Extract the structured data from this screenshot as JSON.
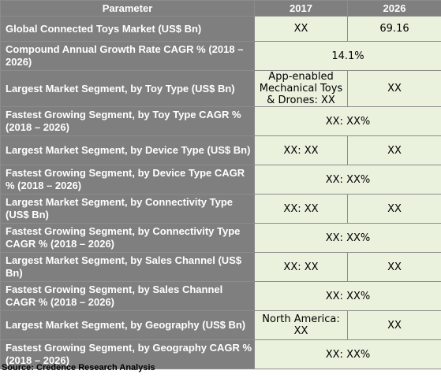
{
  "table": {
    "headers": [
      "Parameter",
      "2017",
      "2026"
    ],
    "rows": [
      {
        "param": "Global Connected Toys Market (US$ Bn)",
        "v2017": "XX",
        "v2026": "69.16"
      },
      {
        "param": "Compound Annual Growth Rate CAGR % (2018 – 2026)",
        "merged": "14.1%"
      },
      {
        "param": "Largest Market Segment, by Toy Type (US$ Bn)",
        "v2017": "App-enabled Mechanical Toys & Drones: XX",
        "v2026": "XX"
      },
      {
        "param": "Fastest Growing Segment, by Toy Type CAGR % (2018 – 2026)",
        "merged": "XX: XX%"
      },
      {
        "param": "Largest Market Segment, by Device Type (US$ Bn)",
        "v2017": "XX: XX",
        "v2026": "XX"
      },
      {
        "param": "Fastest Growing Segment, by Device Type CAGR % (2018 – 2026)",
        "merged": "XX: XX%"
      },
      {
        "param": "Largest Market Segment, by Connectivity Type (US$ Bn)",
        "v2017": "XX: XX",
        "v2026": "XX"
      },
      {
        "param": "Fastest Growing Segment, by Connectivity Type CAGR % (2018 – 2026)",
        "merged": "XX: XX%"
      },
      {
        "param": "Largest Market Segment, by Sales Channel (US$ Bn)",
        "v2017": "XX: XX",
        "v2026": "XX"
      },
      {
        "param": "Fastest Growing Segment, by Sales Channel CAGR % (2018 – 2026)",
        "merged": "XX: XX%"
      },
      {
        "param": "Largest Market Segment, by Geography (US$ Bn)",
        "v2017": "North America: XX",
        "v2026": "XX"
      },
      {
        "param": "Fastest Growing Segment, by Geography CAGR % (2018 – 2026)",
        "merged": "XX: XX%"
      }
    ]
  },
  "source": "Source: Credence Research Analysis",
  "colors": {
    "header_bg": "#7f7f7f",
    "param_bg": "#7f7f7f",
    "value_bg": "#eaf1dd",
    "border": "#8c8c8c"
  }
}
